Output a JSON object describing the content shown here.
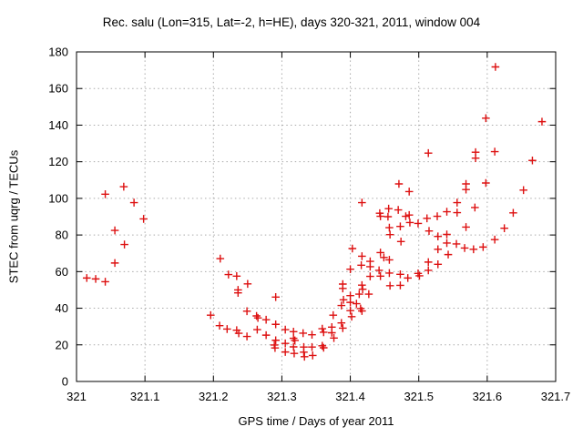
{
  "chart_data": {
    "type": "scatter",
    "title": "Rec. salu (Lon=315, Lat=-2, h=HE), days 320-321, 2011, window 004",
    "xlabel": "GPS time / Days of year 2011",
    "ylabel": "STEC from uqrg / TECUs",
    "xlim": [
      321.0,
      321.7
    ],
    "ylim": [
      0,
      180
    ],
    "x_ticks": [
      {
        "v": 321.0,
        "label": "321"
      },
      {
        "v": 321.1,
        "label": "321.1"
      },
      {
        "v": 321.2,
        "label": "321.2"
      },
      {
        "v": 321.3,
        "label": "321.3"
      },
      {
        "v": 321.4,
        "label": "321.4"
      },
      {
        "v": 321.5,
        "label": "321.5"
      },
      {
        "v": 321.6,
        "label": "321.6"
      },
      {
        "v": 321.7,
        "label": "321.7"
      }
    ],
    "y_ticks": [
      {
        "v": 0,
        "label": "0"
      },
      {
        "v": 20,
        "label": "20"
      },
      {
        "v": 40,
        "label": "40"
      },
      {
        "v": 60,
        "label": "60"
      },
      {
        "v": 80,
        "label": "80"
      },
      {
        "v": 100,
        "label": "100"
      },
      {
        "v": 120,
        "label": "120"
      },
      {
        "v": 140,
        "label": "140"
      },
      {
        "v": 160,
        "label": "160"
      },
      {
        "v": 180,
        "label": "180"
      }
    ],
    "grid": true,
    "legend": "none",
    "marker": "plus",
    "marker_color": "#dd1111",
    "grid_color": "#aaaaaa",
    "border_color": "#000000",
    "text_color": "#000000",
    "points": [
      [
        321.015,
        56.5
      ],
      [
        321.028,
        56.0
      ],
      [
        321.042,
        102.3
      ],
      [
        321.042,
        54.5
      ],
      [
        321.056,
        82.5
      ],
      [
        321.056,
        64.7
      ],
      [
        321.069,
        106.4
      ],
      [
        321.07,
        74.8
      ],
      [
        321.084,
        97.7
      ],
      [
        321.098,
        88.8
      ],
      [
        321.196,
        36.2
      ],
      [
        321.209,
        30.5
      ],
      [
        321.21,
        67.1
      ],
      [
        321.22,
        28.6
      ],
      [
        321.222,
        58.4
      ],
      [
        321.234,
        57.5
      ],
      [
        321.234,
        28.0
      ],
      [
        321.236,
        50.0
      ],
      [
        321.236,
        48.4
      ],
      [
        321.237,
        26.3
      ],
      [
        321.249,
        38.4
      ],
      [
        321.249,
        24.6
      ],
      [
        321.25,
        53.3
      ],
      [
        321.263,
        35.8
      ],
      [
        321.264,
        28.3
      ],
      [
        321.265,
        34.7
      ],
      [
        321.277,
        33.7
      ],
      [
        321.277,
        25.3
      ],
      [
        321.289,
        19.9
      ],
      [
        321.29,
        18.3
      ],
      [
        321.291,
        46.1
      ],
      [
        321.291,
        31.2
      ],
      [
        321.291,
        22.5
      ],
      [
        321.305,
        28.3
      ],
      [
        321.305,
        20.8
      ],
      [
        321.305,
        16.1
      ],
      [
        321.317,
        27.2
      ],
      [
        321.317,
        23.6
      ],
      [
        321.317,
        18.9
      ],
      [
        321.318,
        15.3
      ],
      [
        321.319,
        22.4
      ],
      [
        321.331,
        26.4
      ],
      [
        321.332,
        18.8
      ],
      [
        321.332,
        16.0
      ],
      [
        321.333,
        13.5
      ],
      [
        321.344,
        25.5
      ],
      [
        321.344,
        18.8
      ],
      [
        321.345,
        14.2
      ],
      [
        321.359,
        28.8
      ],
      [
        321.359,
        19.5
      ],
      [
        321.361,
        26.9
      ],
      [
        321.361,
        18.4
      ],
      [
        321.373,
        29.7
      ],
      [
        321.373,
        26.6
      ],
      [
        321.375,
        36.2
      ],
      [
        321.376,
        23.7
      ],
      [
        321.387,
        41.5
      ],
      [
        321.387,
        32.0
      ],
      [
        321.389,
        53.2
      ],
      [
        321.389,
        50.8
      ],
      [
        321.389,
        29.1
      ],
      [
        321.39,
        44.6
      ],
      [
        321.4,
        61.3
      ],
      [
        321.4,
        46.9
      ],
      [
        321.4,
        43.2
      ],
      [
        321.4,
        38.7
      ],
      [
        321.402,
        35.4
      ],
      [
        321.403,
        72.6
      ],
      [
        321.409,
        42.5
      ],
      [
        321.413,
        47.7
      ],
      [
        321.415,
        39.8
      ],
      [
        321.416,
        63.5
      ],
      [
        321.417,
        97.7
      ],
      [
        321.417,
        68.4
      ],
      [
        321.417,
        52.6
      ],
      [
        321.417,
        38.5
      ],
      [
        321.418,
        50.4
      ],
      [
        321.427,
        47.7
      ],
      [
        321.429,
        65.6
      ],
      [
        321.429,
        62.7
      ],
      [
        321.429,
        57.4
      ],
      [
        321.442,
        60.7
      ],
      [
        321.443,
        91.9
      ],
      [
        321.444,
        90.2
      ],
      [
        321.444,
        70.4
      ],
      [
        321.444,
        57.5
      ],
      [
        321.449,
        67.7
      ],
      [
        321.455,
        90.0
      ],
      [
        321.456,
        94.4
      ],
      [
        321.457,
        84.0
      ],
      [
        321.457,
        66.4
      ],
      [
        321.457,
        59.2
      ],
      [
        321.458,
        80.2
      ],
      [
        321.458,
        52.3
      ],
      [
        321.47,
        93.7
      ],
      [
        321.471,
        107.9
      ],
      [
        321.473,
        84.7
      ],
      [
        321.473,
        58.5
      ],
      [
        321.473,
        52.5
      ],
      [
        321.474,
        76.4
      ],
      [
        321.481,
        90.2
      ],
      [
        321.484,
        56.5
      ],
      [
        321.486,
        103.7
      ],
      [
        321.486,
        90.9
      ],
      [
        321.487,
        86.8
      ],
      [
        321.499,
        86.3
      ],
      [
        321.499,
        59.0
      ],
      [
        321.501,
        57.7
      ],
      [
        321.512,
        89.1
      ],
      [
        321.514,
        124.7
      ],
      [
        321.514,
        65.2
      ],
      [
        321.514,
        60.7
      ],
      [
        321.515,
        82.2
      ],
      [
        321.527,
        90.2
      ],
      [
        321.528,
        79.2
      ],
      [
        321.528,
        72.2
      ],
      [
        321.528,
        64.0
      ],
      [
        321.541,
        92.7
      ],
      [
        321.541,
        80.3
      ],
      [
        321.541,
        75.6
      ],
      [
        321.543,
        69.3
      ],
      [
        321.555,
        75.1
      ],
      [
        321.556,
        97.7
      ],
      [
        321.556,
        92.2
      ],
      [
        321.567,
        72.9
      ],
      [
        321.569,
        107.9
      ],
      [
        321.569,
        104.8
      ],
      [
        321.569,
        84.3
      ],
      [
        321.58,
        72.2
      ],
      [
        321.582,
        95.0
      ],
      [
        321.583,
        125.2
      ],
      [
        321.583,
        122.0
      ],
      [
        321.594,
        73.4
      ],
      [
        321.598,
        143.8
      ],
      [
        321.598,
        108.4
      ],
      [
        321.611,
        125.5
      ],
      [
        321.611,
        77.5
      ],
      [
        321.612,
        171.8
      ],
      [
        321.625,
        83.7
      ],
      [
        321.638,
        92.1
      ],
      [
        321.653,
        104.5
      ],
      [
        321.666,
        120.7
      ],
      [
        321.68,
        141.9
      ]
    ]
  }
}
